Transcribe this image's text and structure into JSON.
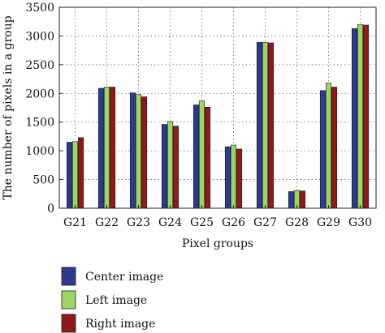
{
  "chart_data": {
    "type": "bar",
    "xlabel": "Pixel groups",
    "ylabel": "The number of pixels in a group",
    "ylim": [
      0,
      3500
    ],
    "yticks": [
      0,
      500,
      1000,
      1500,
      2000,
      2500,
      3000,
      3500
    ],
    "grid": true,
    "legend_position": "bottom-left",
    "categories": [
      "G21",
      "G22",
      "G23",
      "G24",
      "G25",
      "G26",
      "G27",
      "G28",
      "G29",
      "G30"
    ],
    "series": [
      {
        "name": "Center image",
        "color": "#2e3a8c",
        "values": [
          1150,
          2090,
          2010,
          1460,
          1800,
          1070,
          2890,
          290,
          2050,
          3130
        ]
      },
      {
        "name": "Left image",
        "color": "#9ed36a",
        "values": [
          1160,
          2110,
          1980,
          1510,
          1870,
          1100,
          2890,
          310,
          2180,
          3200
        ]
      },
      {
        "name": "Right image",
        "color": "#8e1b1b",
        "values": [
          1230,
          2110,
          1940,
          1430,
          1760,
          1030,
          2880,
          300,
          2110,
          3190
        ]
      }
    ]
  }
}
